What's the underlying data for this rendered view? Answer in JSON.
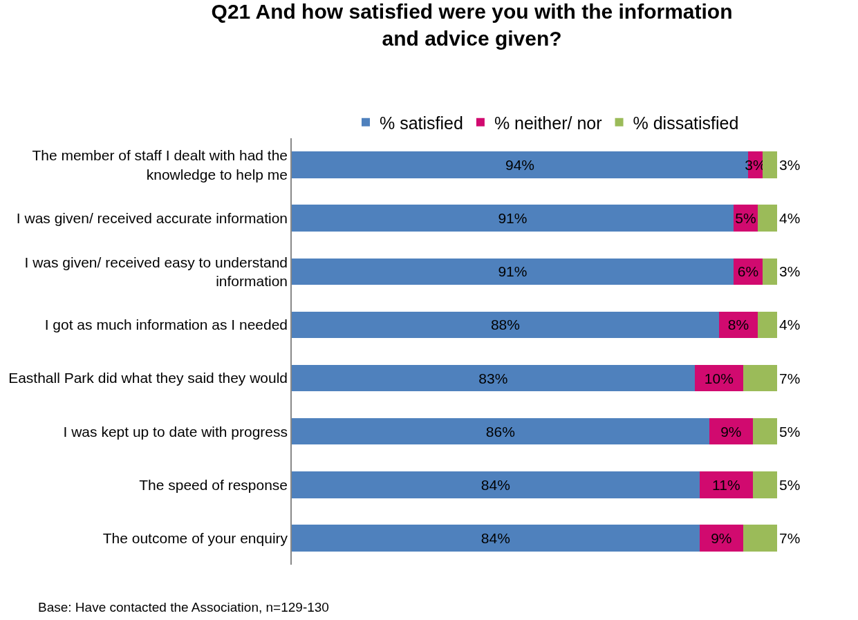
{
  "chart_data": {
    "type": "bar",
    "orientation": "horizontal",
    "stacked": true,
    "title": "Q21 And how satisfied were you with the information and advice given?",
    "categories": [
      "The member of staff I dealt with had the knowledge to help me",
      "I was given/ received accurate information",
      "I was given/ received easy to understand information",
      "I got as much information as I needed",
      "Easthall Park did what they said they would",
      "I was kept up to date with progress",
      "The speed of response",
      "The outcome of your enquiry"
    ],
    "series": [
      {
        "name": "% satisfied",
        "color": "#4f81bd",
        "values": [
          94,
          91,
          91,
          88,
          83,
          86,
          84,
          84
        ],
        "value_labels": [
          "94%",
          "91%",
          "91%",
          "88%",
          "83%",
          "86%",
          "84%",
          "84%"
        ]
      },
      {
        "name": "% neither/ nor",
        "color": "#d10a6f",
        "values": [
          3,
          5,
          6,
          8,
          10,
          9,
          11,
          9
        ],
        "value_labels": [
          "3%",
          "5%",
          "6%",
          "8%",
          "10%",
          "9%",
          "11%",
          "9%"
        ]
      },
      {
        "name": "% dissatisfied",
        "color": "#9bbb59",
        "values": [
          3,
          4,
          3,
          4,
          7,
          5,
          5,
          7
        ],
        "value_labels": [
          "3%",
          "4%",
          "3%",
          "4%",
          "7%",
          "5%",
          "5%",
          "7%"
        ]
      }
    ],
    "tick_labels": "y",
    "legend": "top",
    "annotations": [
      "Base: Have contacted the Association, n=129-130"
    ]
  }
}
